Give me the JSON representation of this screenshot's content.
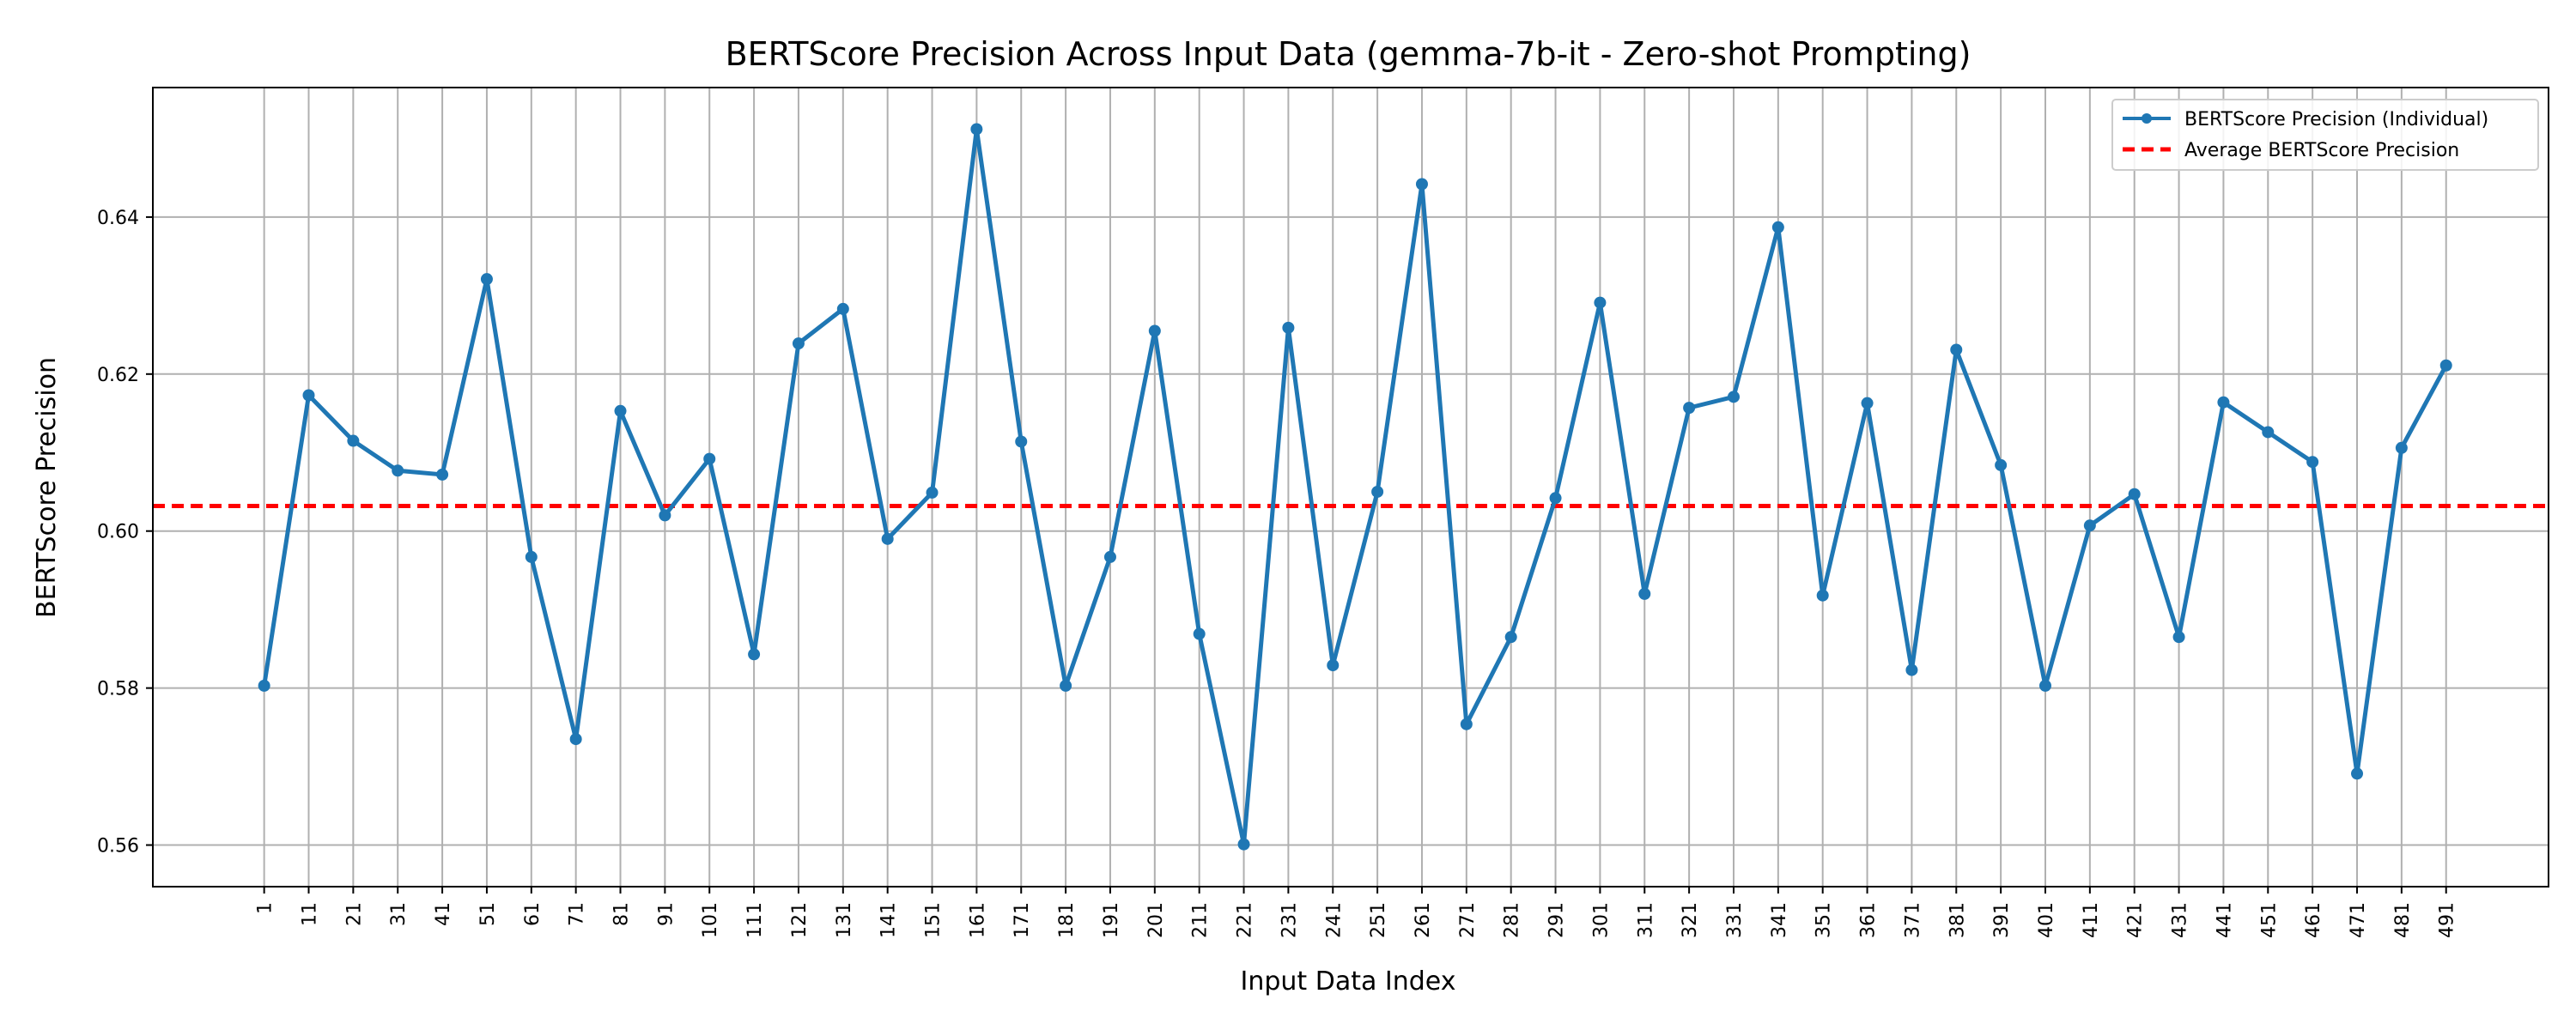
{
  "chart_data": {
    "type": "line",
    "title": "BERTScore Precision Across Input Data (gemma-7b-it - Zero-shot Prompting)",
    "xlabel": "Input Data Index",
    "ylabel": "BERTScore Precision",
    "x": [
      1,
      11,
      21,
      31,
      41,
      51,
      61,
      71,
      81,
      91,
      101,
      111,
      121,
      131,
      141,
      151,
      161,
      171,
      181,
      191,
      201,
      211,
      221,
      231,
      241,
      251,
      261,
      271,
      281,
      291,
      301,
      311,
      321,
      331,
      341,
      351,
      361,
      371,
      381,
      391,
      401,
      411,
      421,
      431,
      441,
      451,
      461,
      471,
      481,
      491
    ],
    "series": [
      {
        "name": "BERTScore Precision (Individual)",
        "color": "#1f77b4",
        "values": [
          0.5803,
          0.6173,
          0.6115,
          0.6077,
          0.6072,
          0.6321,
          0.5967,
          0.5735,
          0.6153,
          0.602,
          0.6092,
          0.5843,
          0.6239,
          0.6283,
          0.599,
          0.6049,
          0.6512,
          0.6114,
          0.5803,
          0.5967,
          0.6255,
          0.5869,
          0.5601,
          0.6259,
          0.5829,
          0.605,
          0.6442,
          0.5754,
          0.5865,
          0.6042,
          0.6291,
          0.592,
          0.6157,
          0.6171,
          0.6387,
          0.5918,
          0.6163,
          0.5823,
          0.6231,
          0.6084,
          0.5803,
          0.6007,
          0.6047,
          0.5865,
          0.6164,
          0.6126,
          0.6088,
          0.5691,
          0.6106,
          0.6211
        ]
      }
    ],
    "average": {
      "name": "Average BERTScore Precision",
      "color": "#ff0000",
      "value": 0.6032
    },
    "ylim": [
      0.5547,
      0.6565
    ],
    "xlim": [
      -24,
      514
    ],
    "yticks": [
      0.56,
      0.58,
      0.6,
      0.62,
      0.64
    ],
    "ytick_labels": [
      "0.56",
      "0.58",
      "0.60",
      "0.62",
      "0.64"
    ],
    "grid": true,
    "legend_position": "top-right"
  }
}
